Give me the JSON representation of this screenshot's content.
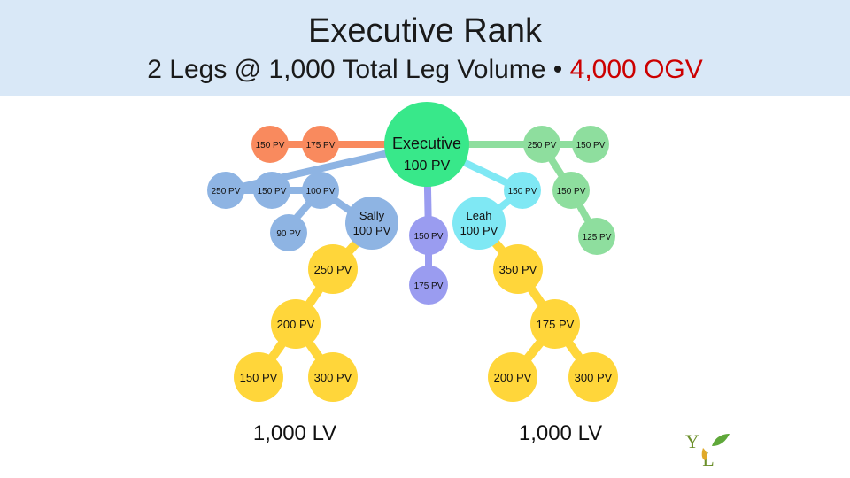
{
  "header": {
    "title": "Executive Rank",
    "subtitle_main": "2 Legs @ 1,000 Total Leg Volume • ",
    "subtitle_ogv": "4,000 OGV"
  },
  "colors": {
    "header_bg": "#d9e8f7",
    "executive": "#38e88a",
    "orange": "#f98a5e",
    "blue": "#8eb4e3",
    "purple": "#9a9cf0",
    "cyan": "#7fe8f4",
    "yellow": "#ffd63a",
    "green": "#8ede9e",
    "line_orange": "#f98a5e",
    "ogv_red": "#cc0000"
  },
  "nodes": {
    "executive": {
      "name": "Executive",
      "pv": "100 PV"
    },
    "o1": "150 PV",
    "o2": "175 PV",
    "b1": "250 PV",
    "b2": "150 PV",
    "b3": "100 PV",
    "b4": "90 PV",
    "sally": {
      "name": "Sally",
      "pv": "100 PV"
    },
    "p1": "150 PV",
    "p2": "175 PV",
    "leah": {
      "name": "Leah",
      "pv": "100 PV"
    },
    "c1": "150 PV",
    "g1": "250 PV",
    "g2": "150 PV",
    "g3": "150 PV",
    "g4": "125 PV",
    "y_left_top": "250 PV",
    "y_left_mid": "200 PV",
    "y_left_bl": "150 PV",
    "y_left_br": "300 PV",
    "y_right_top": "350 PV",
    "y_right_mid": "175 PV",
    "y_right_bl": "200 PV",
    "y_right_br": "300 PV"
  },
  "totals": {
    "left": "1,000 LV",
    "right": "1,000 LV"
  },
  "logo": {
    "letter_top": "Y",
    "letter_bottom": "L"
  }
}
